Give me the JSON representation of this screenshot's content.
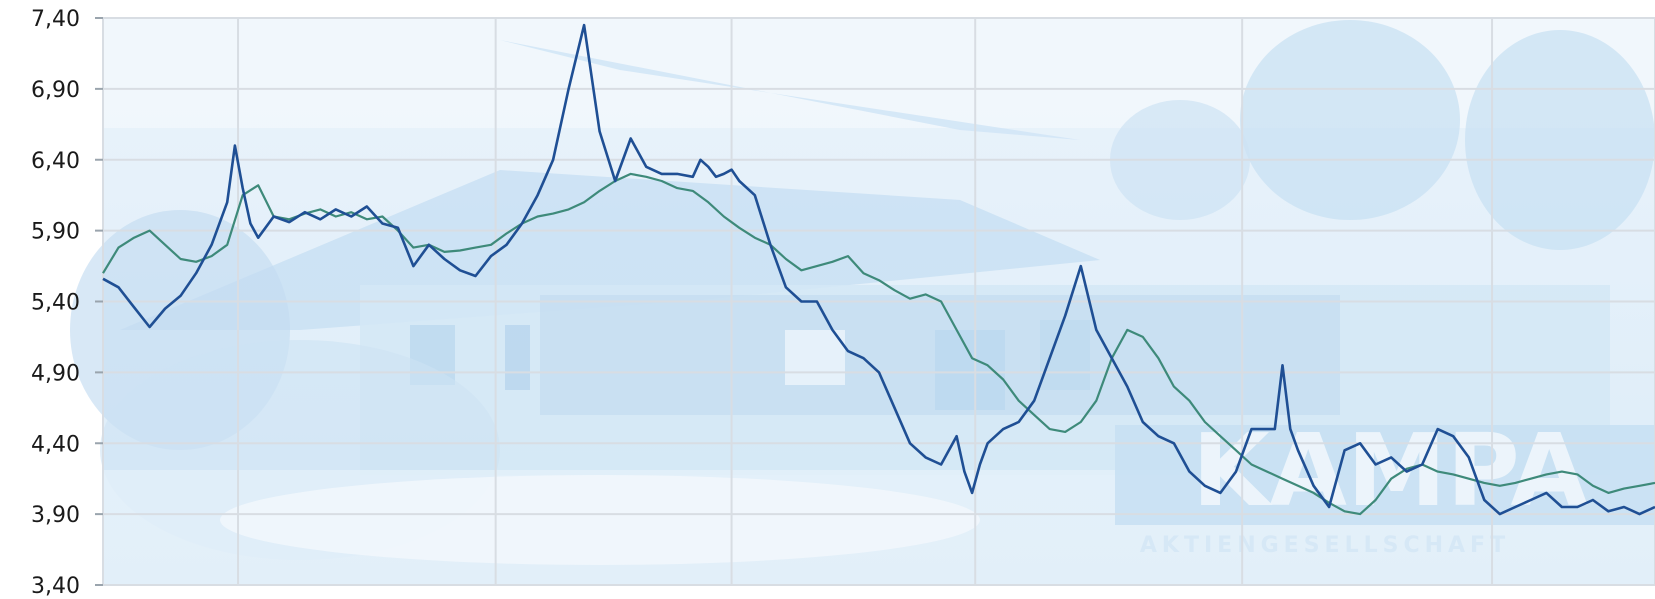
{
  "chart_data": {
    "type": "line",
    "title": "",
    "xlabel": "",
    "ylabel": "",
    "ylim": [
      3.4,
      7.4
    ],
    "yticks": [
      "7,40",
      "6,90",
      "6,40",
      "5,90",
      "5,40",
      "4,90",
      "4,40",
      "3,90",
      "3,40"
    ],
    "ytick_values": [
      7.4,
      6.9,
      6.4,
      5.9,
      5.4,
      4.9,
      4.4,
      3.9,
      3.4
    ],
    "grid": true,
    "x_grid_fractions": [
      0.0,
      0.087,
      0.253,
      0.405,
      0.562,
      0.734,
      0.895,
      1.0
    ],
    "series": [
      {
        "color": "#1f4f94",
        "x": [
          0.0,
          0.01,
          0.02,
          0.03,
          0.04,
          0.05,
          0.06,
          0.07,
          0.08,
          0.085,
          0.09,
          0.095,
          0.1,
          0.11,
          0.12,
          0.13,
          0.14,
          0.15,
          0.16,
          0.17,
          0.18,
          0.19,
          0.2,
          0.21,
          0.22,
          0.23,
          0.24,
          0.25,
          0.26,
          0.27,
          0.28,
          0.29,
          0.3,
          0.31,
          0.32,
          0.33,
          0.34,
          0.35,
          0.36,
          0.37,
          0.38,
          0.385,
          0.39,
          0.395,
          0.4,
          0.405,
          0.41,
          0.42,
          0.43,
          0.44,
          0.45,
          0.46,
          0.47,
          0.48,
          0.49,
          0.5,
          0.51,
          0.52,
          0.53,
          0.54,
          0.55,
          0.555,
          0.56,
          0.565,
          0.57,
          0.58,
          0.59,
          0.6,
          0.61,
          0.62,
          0.63,
          0.64,
          0.65,
          0.66,
          0.67,
          0.68,
          0.69,
          0.7,
          0.71,
          0.72,
          0.73,
          0.74,
          0.75,
          0.755,
          0.76,
          0.765,
          0.77,
          0.78,
          0.79,
          0.8,
          0.81,
          0.82,
          0.83,
          0.84,
          0.85,
          0.86,
          0.87,
          0.88,
          0.89,
          0.9,
          0.91,
          0.92,
          0.93,
          0.94,
          0.95,
          0.96,
          0.97,
          0.98,
          0.99,
          1.0
        ],
        "values": [
          5.56,
          5.5,
          5.36,
          5.22,
          5.35,
          5.44,
          5.6,
          5.8,
          6.1,
          6.5,
          6.2,
          5.95,
          5.85,
          6.0,
          5.96,
          6.03,
          5.98,
          6.05,
          6.0,
          6.07,
          5.95,
          5.92,
          5.65,
          5.8,
          5.7,
          5.62,
          5.58,
          5.72,
          5.8,
          5.95,
          6.15,
          6.4,
          6.9,
          7.35,
          6.6,
          6.25,
          6.55,
          6.35,
          6.3,
          6.3,
          6.28,
          6.4,
          6.35,
          6.28,
          6.3,
          6.33,
          6.25,
          6.15,
          5.8,
          5.5,
          5.4,
          5.4,
          5.2,
          5.05,
          5.0,
          4.9,
          4.65,
          4.4,
          4.3,
          4.25,
          4.45,
          4.2,
          4.05,
          4.25,
          4.4,
          4.5,
          4.55,
          4.7,
          5.0,
          5.3,
          5.65,
          5.2,
          5.0,
          4.8,
          4.55,
          4.45,
          4.4,
          4.2,
          4.1,
          4.05,
          4.2,
          4.5,
          4.5,
          4.5,
          4.95,
          4.5,
          4.35,
          4.1,
          3.95,
          4.35,
          4.4,
          4.25,
          4.3,
          4.2,
          4.25,
          4.5,
          4.45,
          4.3,
          4.0,
          3.9,
          3.95,
          4.0,
          4.05,
          3.95,
          3.95,
          4.0,
          3.92,
          3.95,
          3.9,
          3.95
        ]
      },
      {
        "color": "#3e8a7a",
        "x": [
          0.0,
          0.01,
          0.02,
          0.03,
          0.04,
          0.05,
          0.06,
          0.07,
          0.08,
          0.09,
          0.1,
          0.11,
          0.12,
          0.13,
          0.14,
          0.15,
          0.16,
          0.17,
          0.18,
          0.19,
          0.2,
          0.21,
          0.22,
          0.23,
          0.24,
          0.25,
          0.26,
          0.27,
          0.28,
          0.29,
          0.3,
          0.31,
          0.32,
          0.33,
          0.34,
          0.35,
          0.36,
          0.37,
          0.38,
          0.39,
          0.4,
          0.41,
          0.42,
          0.43,
          0.44,
          0.45,
          0.46,
          0.47,
          0.48,
          0.49,
          0.5,
          0.51,
          0.52,
          0.53,
          0.54,
          0.55,
          0.56,
          0.57,
          0.58,
          0.59,
          0.6,
          0.61,
          0.62,
          0.63,
          0.64,
          0.65,
          0.66,
          0.67,
          0.68,
          0.69,
          0.7,
          0.71,
          0.72,
          0.73,
          0.74,
          0.75,
          0.76,
          0.77,
          0.78,
          0.79,
          0.8,
          0.81,
          0.82,
          0.83,
          0.84,
          0.85,
          0.86,
          0.87,
          0.88,
          0.89,
          0.9,
          0.91,
          0.92,
          0.93,
          0.94,
          0.95,
          0.96,
          0.97,
          0.98,
          0.99,
          1.0
        ],
        "values": [
          5.6,
          5.78,
          5.85,
          5.9,
          5.8,
          5.7,
          5.68,
          5.72,
          5.8,
          6.15,
          6.22,
          6.0,
          5.98,
          6.02,
          6.05,
          6.0,
          6.03,
          5.98,
          6.0,
          5.9,
          5.78,
          5.8,
          5.75,
          5.76,
          5.78,
          5.8,
          5.88,
          5.95,
          6.0,
          6.02,
          6.05,
          6.1,
          6.18,
          6.25,
          6.3,
          6.28,
          6.25,
          6.2,
          6.18,
          6.1,
          6.0,
          5.92,
          5.85,
          5.8,
          5.7,
          5.62,
          5.65,
          5.68,
          5.72,
          5.6,
          5.55,
          5.48,
          5.42,
          5.45,
          5.4,
          5.2,
          5.0,
          4.95,
          4.85,
          4.7,
          4.6,
          4.5,
          4.48,
          4.55,
          4.7,
          5.0,
          5.2,
          5.15,
          5.0,
          4.8,
          4.7,
          4.55,
          4.45,
          4.35,
          4.25,
          4.2,
          4.15,
          4.1,
          4.05,
          3.98,
          3.92,
          3.9,
          4.0,
          4.15,
          4.22,
          4.25,
          4.2,
          4.18,
          4.15,
          4.12,
          4.1,
          4.12,
          4.15,
          4.18,
          4.2,
          4.18,
          4.1,
          4.05,
          4.08,
          4.1,
          4.12
        ]
      }
    ]
  }
}
